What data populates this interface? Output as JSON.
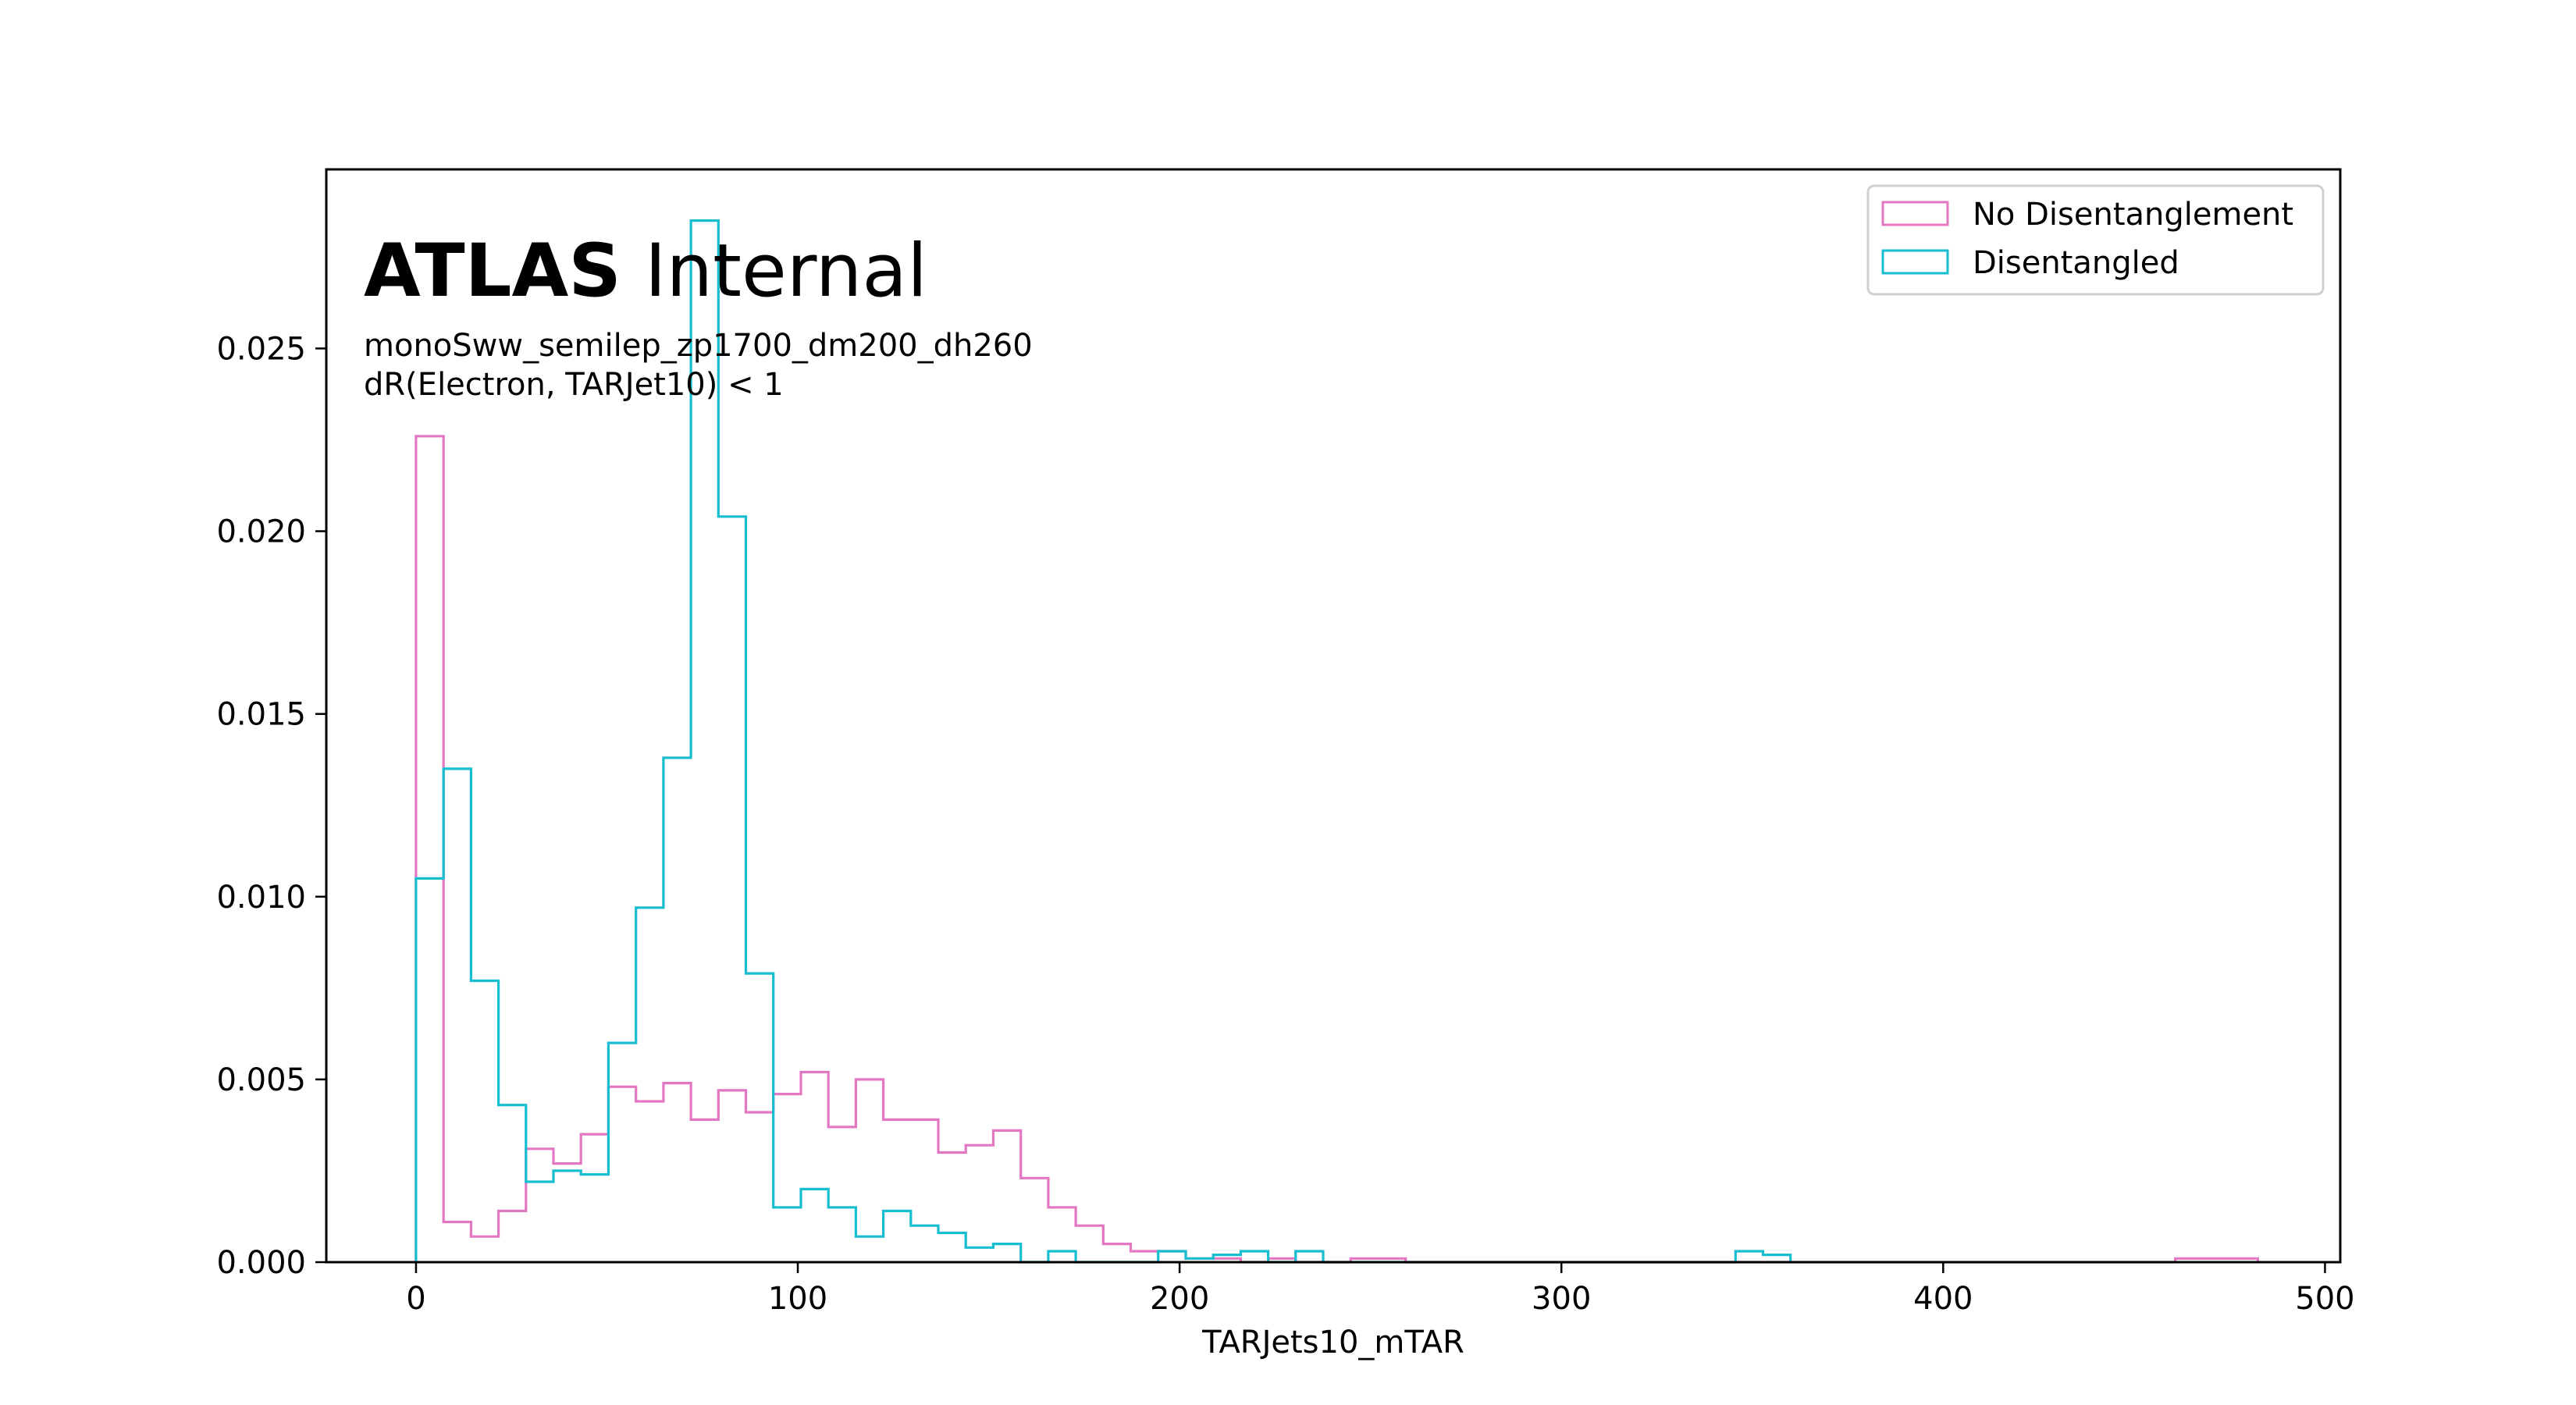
{
  "chart_data": {
    "type": "histogram",
    "xlabel": "TARJets10_mTAR",
    "ylabel": "",
    "xlim": [
      -23.5,
      504
    ],
    "ylim": [
      0.0,
      0.0299
    ],
    "xticks": [
      0,
      100,
      200,
      300,
      400,
      500
    ],
    "yticks": [
      0.0,
      0.005,
      0.01,
      0.015,
      0.02,
      0.025
    ],
    "xtick_labels": [
      "0",
      "100",
      "200",
      "300",
      "400",
      "500"
    ],
    "ytick_labels": [
      "0.000",
      "0.005",
      "0.010",
      "0.015",
      "0.020",
      "0.025"
    ],
    "grid": false,
    "legend_position": "upper right",
    "bin_width": 7.2,
    "x_start": 0.0,
    "annotations": {
      "atlas_bold": "ATLAS",
      "atlas_label": "Internal",
      "line1": "monoSww_semilep_zp1700_dm200_dh260",
      "line2": "dR(Electron, TARJet10) < 1"
    },
    "series": [
      {
        "name": "No Disentanglement",
        "color": "#e377c2",
        "values": [
          0.0226,
          0.0011,
          0.0007,
          0.0014,
          0.0031,
          0.0027,
          0.0035,
          0.0048,
          0.0044,
          0.0049,
          0.0039,
          0.0047,
          0.0041,
          0.0046,
          0.0052,
          0.0037,
          0.005,
          0.0039,
          0.0039,
          0.003,
          0.0032,
          0.0036,
          0.0023,
          0.0015,
          0.001,
          0.0005,
          0.0003,
          0.0003,
          0.0001,
          0.0001,
          0.0,
          0.0001,
          0.0,
          0.0,
          0.0001,
          0.0001,
          0.0,
          0.0,
          0.0,
          0.0,
          0.0,
          0.0,
          0.0,
          0.0,
          0.0,
          0.0,
          0.0,
          0.0,
          0.0,
          0.0,
          0.0,
          0.0,
          0.0,
          0.0,
          0.0,
          0.0,
          0.0,
          0.0,
          0.0,
          0.0,
          0.0,
          0.0,
          0.0,
          0.0,
          0.0001,
          0.0001,
          0.0001
        ]
      },
      {
        "name": "Disentangled",
        "color": "#17becf",
        "values": [
          0.0105,
          0.0135,
          0.0077,
          0.0043,
          0.0022,
          0.0025,
          0.0024,
          0.006,
          0.0097,
          0.0138,
          0.0285,
          0.0204,
          0.0079,
          0.0015,
          0.002,
          0.0015,
          0.0007,
          0.0014,
          0.001,
          0.0008,
          0.0004,
          0.0005,
          0.0,
          0.0003,
          0.0,
          0.0,
          0.0,
          0.0003,
          0.0001,
          0.0002,
          0.0003,
          0.0,
          0.0003,
          0.0,
          0.0,
          0.0,
          0.0,
          0.0,
          0.0,
          0.0,
          0.0,
          0.0,
          0.0,
          0.0,
          0.0,
          0.0,
          0.0,
          0.0,
          0.0003,
          0.0002
        ]
      }
    ]
  }
}
